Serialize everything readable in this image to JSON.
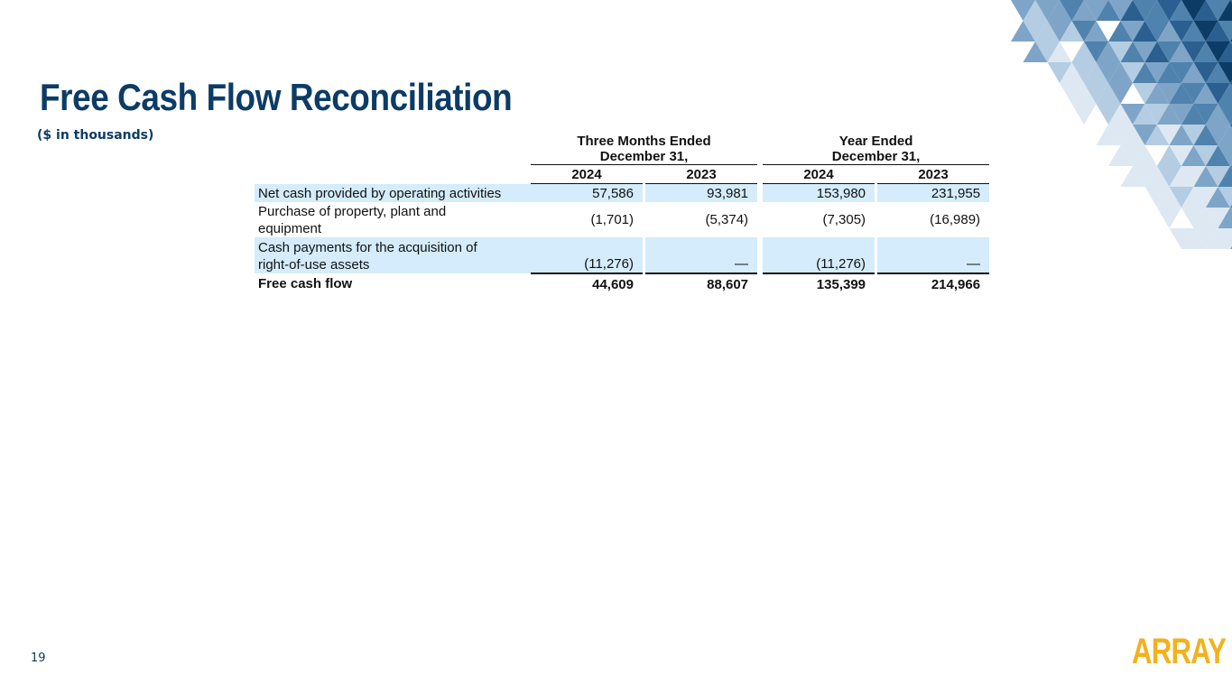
{
  "slide": {
    "title": "Free Cash Flow Reconciliation",
    "subtitle": "($ in thousands)",
    "page_number": "19",
    "logo_text": "ARRAY"
  },
  "colors": {
    "title": "#0c3c66",
    "logo": "#f2b21b",
    "row_highlight": "#d4ecfb",
    "triangle_palette": [
      "#0c3c66",
      "#2a5f8f",
      "#4f82ad",
      "#7ea5c7",
      "#b4cde2",
      "#dde8f2"
    ]
  },
  "table": {
    "group_headers": [
      {
        "line1": "Three Months Ended",
        "line2": "December 31,"
      },
      {
        "line1": "Year Ended",
        "line2": "December 31,"
      }
    ],
    "years": [
      "2024",
      "2023",
      "2024",
      "2023"
    ],
    "rows": [
      {
        "label_lines": [
          "Net cash provided by operating activities"
        ],
        "values": [
          "57,586",
          "93,981",
          "153,980",
          "231,955"
        ]
      },
      {
        "label_lines": [
          "Purchase of property, plant and",
          "equipment"
        ],
        "values": [
          "(1,701)",
          "(5,374)",
          "(7,305)",
          "(16,989)"
        ]
      },
      {
        "label_lines": [
          "Cash payments for the acquisition of",
          "right-of-use assets"
        ],
        "values": [
          "(11,276)",
          "—",
          "(11,276)",
          "—"
        ]
      }
    ],
    "total": {
      "label": "Free cash flow",
      "values": [
        "44,609",
        "88,607",
        "135,399",
        "214,966"
      ]
    }
  }
}
